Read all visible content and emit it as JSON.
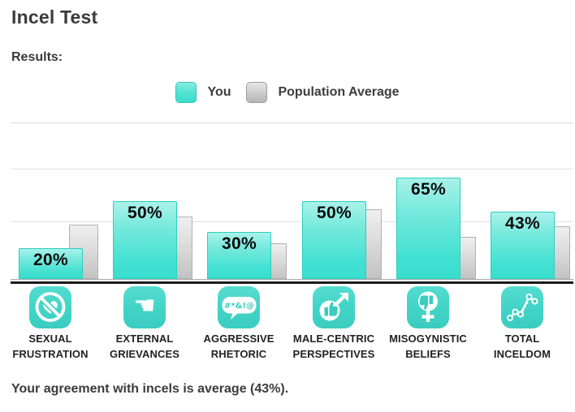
{
  "header": {
    "title": "Incel Test",
    "results_label": "Results:"
  },
  "legend": {
    "you": "You",
    "population": "Population Average"
  },
  "colors": {
    "you_bar": "#3fe0d1",
    "population_bar": "#c9c9c9",
    "icon_tile": "#41d4c6",
    "text_dark": "#3b3b3b",
    "axis_line": "#1c1c1c",
    "gridline": "#e0e0e0"
  },
  "chart_data": {
    "type": "bar",
    "categories": [
      "SEXUAL FRUSTRATION",
      "EXTERNAL GRIEVANCES",
      "AGGRESSIVE RHETORIC",
      "MALE-CENTRIC PERSPECTIVES",
      "MISOGYNISTIC BELIEFS",
      "TOTAL INCELDOM"
    ],
    "series": [
      {
        "name": "You",
        "values": [
          20,
          50,
          30,
          50,
          65,
          43
        ]
      },
      {
        "name": "Population Average",
        "values": [
          35,
          40,
          23,
          45,
          27,
          34
        ]
      }
    ],
    "value_labels": [
      "20%",
      "50%",
      "30%",
      "50%",
      "65%",
      "43%"
    ],
    "title": "Incel Test",
    "xlabel": "",
    "ylabel": "",
    "ylim": [
      0,
      100
    ],
    "grid": true,
    "legend_position": "top-center",
    "value_labels_shown_for": "You"
  },
  "icons": [
    {
      "name": "blocked-heart-icon"
    },
    {
      "name": "pointing-hand-icon",
      "glyph": "☚"
    },
    {
      "name": "swearing-speech-bubble-icon",
      "glyph_text": "#*&!@"
    },
    {
      "name": "male-thumbs-up-icon"
    },
    {
      "name": "female-thumbs-down-icon"
    },
    {
      "name": "trend-line-icon"
    }
  ],
  "summary": {
    "text": "Your agreement with incels is average (43%)."
  }
}
